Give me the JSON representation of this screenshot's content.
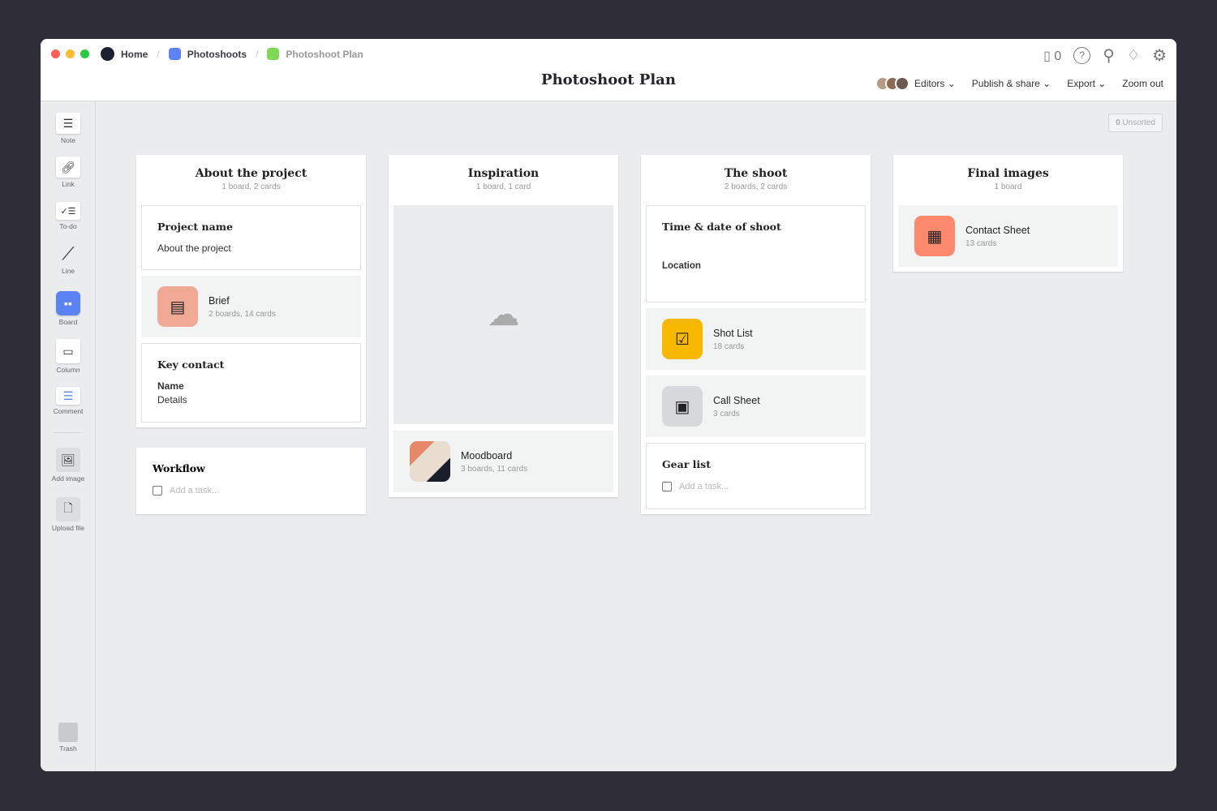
{
  "breadcrumb": {
    "home": "Home",
    "parent": "Photoshoots",
    "current": "Photoshoot Plan",
    "parent_color": "#5b83f3",
    "current_color": "#7ed957"
  },
  "header": {
    "title": "Photoshoot Plan",
    "device_count": "0",
    "editors": "Editors",
    "publish": "Publish & share",
    "export": "Export",
    "zoom": "Zoom out"
  },
  "unsorted": {
    "count": "0",
    "label": "Unsorted"
  },
  "sidebar": {
    "items": [
      "Note",
      "Link",
      "To-do",
      "Line",
      "Board",
      "Column",
      "Comment",
      "Add image",
      "Upload file"
    ],
    "trash": "Trash"
  },
  "columns": [
    {
      "title": "About the project",
      "sub": "1 board, 2 cards",
      "project": {
        "title": "Project name",
        "text": "About the project"
      },
      "brief": {
        "title": "Brief",
        "sub": "2 boards, 14 cards",
        "color": "#f0a994"
      },
      "contact": {
        "title": "Key contact",
        "name": "Name",
        "details": "Details"
      }
    },
    {
      "title": "Inspiration",
      "sub": "1 board, 1 card",
      "moodboard": {
        "title": "Moodboard",
        "sub": "3 boards, 11 cards"
      }
    },
    {
      "title": "The shoot",
      "sub": "2 boards, 2 cards",
      "time": {
        "title": "Time & date of shoot",
        "location": "Location"
      },
      "shotlist": {
        "title": "Shot List",
        "sub": "18 cards",
        "color": "#f9b800"
      },
      "callsheet": {
        "title": "Call Sheet",
        "sub": "3 cards",
        "color": "#d7d8db"
      },
      "gear": {
        "title": "Gear list",
        "placeholder": "Add a task..."
      }
    },
    {
      "title": "Final images",
      "sub": "1 board",
      "contactsheet": {
        "title": "Contact Sheet",
        "sub": "13 cards",
        "color": "#fd8a6e"
      }
    }
  ],
  "workflow": {
    "title": "Workflow",
    "placeholder": "Add a task..."
  }
}
